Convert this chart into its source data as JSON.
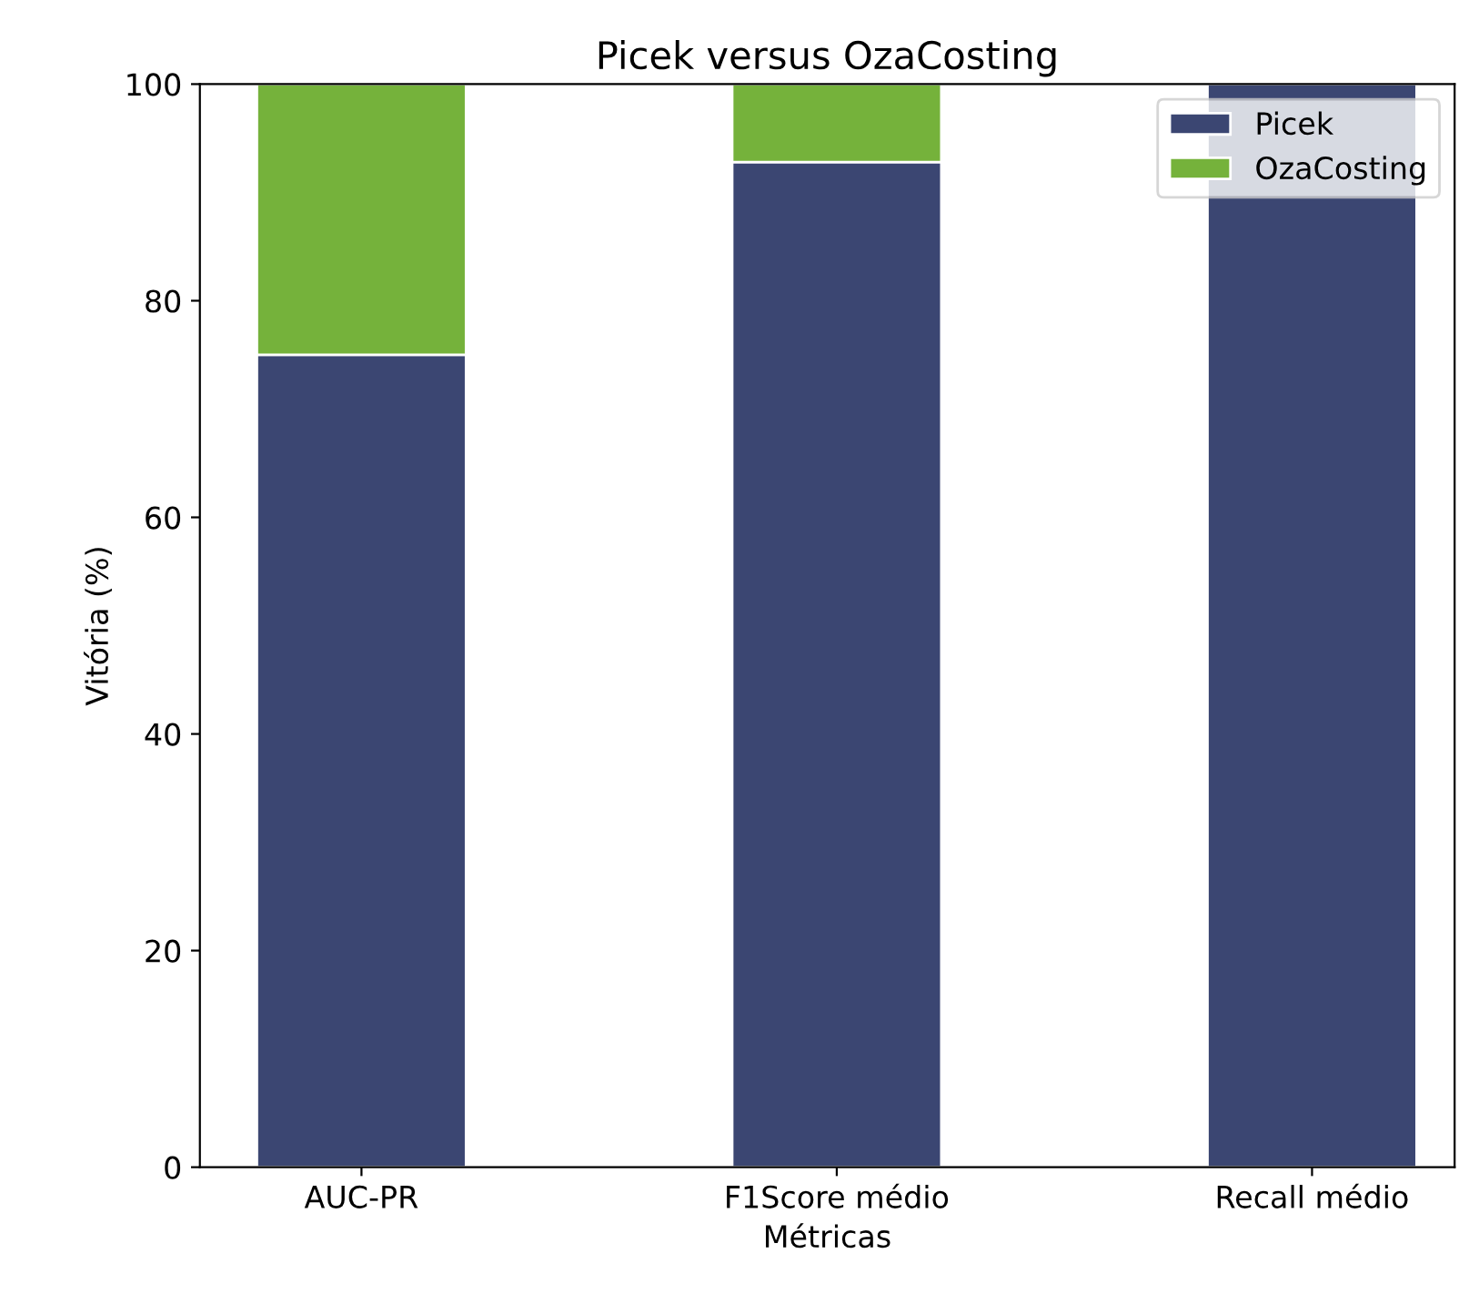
{
  "chart_data": {
    "type": "bar",
    "title": "Picek versus OzaCosting",
    "xlabel": "Métricas",
    "ylabel": "Vitória (%)",
    "categories": [
      "AUC-PR",
      "F1Score médio",
      "Recall médio"
    ],
    "stacked": true,
    "series": [
      {
        "name": "Picek",
        "color": "#3b4672",
        "values": [
          75,
          92.8,
          100
        ]
      },
      {
        "name": "OzaCosting",
        "color": "#75b23b",
        "values": [
          25,
          7.2,
          null
        ]
      }
    ],
    "ylim": [
      0,
      100
    ],
    "yticks": [
      0,
      20,
      40,
      60,
      80,
      100
    ],
    "grid": false,
    "legend": "top right"
  }
}
